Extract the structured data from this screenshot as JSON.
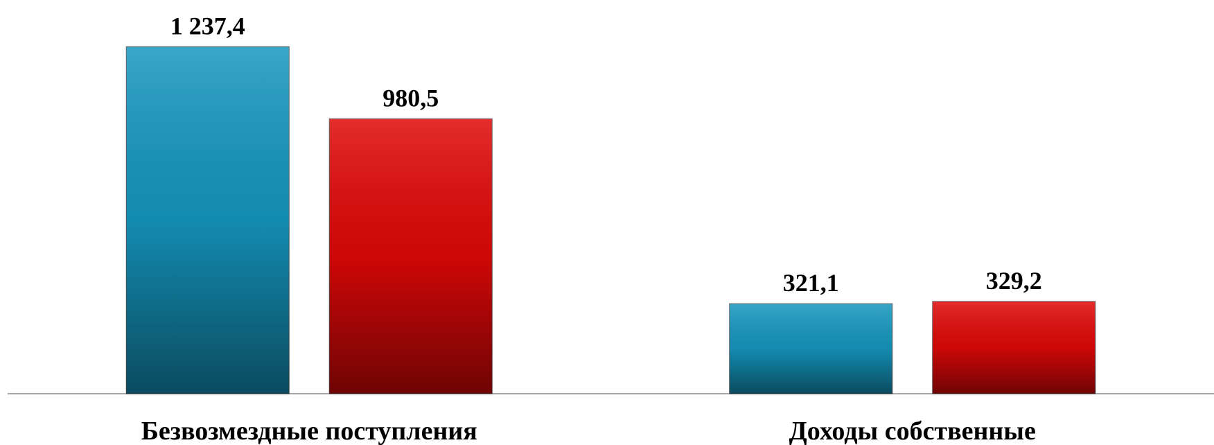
{
  "chart_data": {
    "type": "bar",
    "categories": [
      "Безвозмездные поступления",
      "Доходы собственные"
    ],
    "series": [
      {
        "color": "#1597bf",
        "values": [
          1237.4,
          321.1
        ],
        "value_labels": [
          "1 237,4",
          "321,1"
        ]
      },
      {
        "color": "#e00808",
        "values": [
          980.5,
          329.2
        ],
        "value_labels": [
          "980,5",
          "329,2"
        ]
      }
    ],
    "ylim": [
      0,
      1300
    ]
  }
}
